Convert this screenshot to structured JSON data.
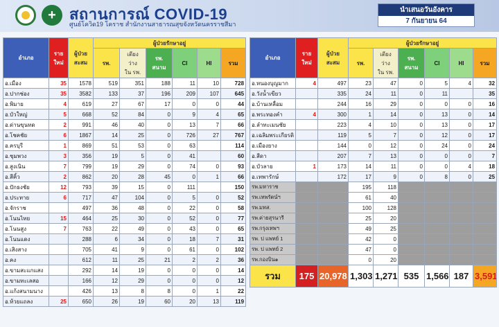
{
  "header": {
    "title": "สถานการณ์ COVID-19",
    "subtitle": "ศูนย์โควิด19 โคราช สำนักงานสาธารณสุขจังหวัดนครราชสีมา",
    "date_label": "นำเสนอวันอังคาร",
    "date_value": "7 กันยายน 64"
  },
  "columns": {
    "district": "อำเภอ",
    "new": "ราย\nใหม่",
    "cumulative": "ผู้ป่วย\nสะสม",
    "group": "ผู้ป่วยรักษาอยู่",
    "hospital": "รพ.",
    "beds": "เตียง\nว่าง\nใน รพ.",
    "field": "รพ.\nสนาม",
    "ci": "CI",
    "hi": "HI",
    "total": "รวม"
  },
  "left_rows": [
    {
      "name": "อ.เมือง",
      "new": "35",
      "cum": "1578",
      "hosp": "519",
      "beds": "351",
      "field": "188",
      "ci": "11",
      "hi": "10",
      "total": "728"
    },
    {
      "name": "อ.ปากช่อง",
      "new": "35",
      "cum": "3582",
      "hosp": "133",
      "beds": "37",
      "field": "196",
      "ci": "209",
      "hi": "107",
      "total": "645"
    },
    {
      "name": "อ.พิมาย",
      "new": "4",
      "cum": "619",
      "hosp": "27",
      "beds": "67",
      "field": "17",
      "ci": "0",
      "hi": "0",
      "total": "44"
    },
    {
      "name": "อ.บัวใหญ่",
      "new": "5",
      "cum": "668",
      "hosp": "52",
      "beds": "84",
      "field": "0",
      "ci": "9",
      "hi": "4",
      "total": "65"
    },
    {
      "name": "อ.ด่านขุนทด",
      "new": "2",
      "cum": "991",
      "hosp": "46",
      "beds": "40",
      "field": "0",
      "ci": "13",
      "hi": "7",
      "total": "66"
    },
    {
      "name": "อ.โชคชัย",
      "new": "6",
      "cum": "1867",
      "hosp": "14",
      "beds": "25",
      "field": "0",
      "ci": "726",
      "hi": "27",
      "total": "767"
    },
    {
      "name": "อ.ครบุรี",
      "new": "1",
      "cum": "869",
      "hosp": "51",
      "beds": "53",
      "field": "0",
      "ci": "63",
      "hi": "",
      "total": "114"
    },
    {
      "name": "อ.ชุมพวง",
      "new": "3",
      "cum": "356",
      "hosp": "19",
      "beds": "5",
      "field": "0",
      "ci": "41",
      "hi": "",
      "total": "60"
    },
    {
      "name": "อ.สูงเนิน",
      "new": "7",
      "cum": "799",
      "hosp": "19",
      "beds": "29",
      "field": "0",
      "ci": "74",
      "hi": "0",
      "total": "93"
    },
    {
      "name": "อ.สีคิ้ว",
      "new": "2",
      "cum": "862",
      "hosp": "20",
      "beds": "28",
      "field": "45",
      "ci": "0",
      "hi": "1",
      "total": "66"
    },
    {
      "name": "อ.ปักธงชัย",
      "new": "12",
      "cum": "793",
      "hosp": "39",
      "beds": "15",
      "field": "0",
      "ci": "111",
      "hi": "",
      "total": "150"
    },
    {
      "name": "อ.ประทาย",
      "new": "6",
      "cum": "717",
      "hosp": "47",
      "beds": "104",
      "field": "0",
      "ci": "5",
      "hi": "0",
      "total": "52"
    },
    {
      "name": "อ.จักราช",
      "new": "",
      "cum": "497",
      "hosp": "36",
      "beds": "48",
      "field": "0",
      "ci": "22",
      "hi": "0",
      "total": "58"
    },
    {
      "name": "อ.โนนไทย",
      "new": "15",
      "cum": "464",
      "hosp": "25",
      "beds": "30",
      "field": "0",
      "ci": "52",
      "hi": "0",
      "total": "77"
    },
    {
      "name": "อ.โนนสูง",
      "new": "7",
      "cum": "763",
      "hosp": "22",
      "beds": "49",
      "field": "0",
      "ci": "43",
      "hi": "0",
      "total": "65"
    },
    {
      "name": "อ.โนนแดง",
      "new": "",
      "cum": "288",
      "hosp": "6",
      "beds": "34",
      "field": "0",
      "ci": "18",
      "hi": "7",
      "total": "31"
    },
    {
      "name": "อ.เสิงสาง",
      "new": "",
      "cum": "705",
      "hosp": "41",
      "beds": "9",
      "field": "0",
      "ci": "61",
      "hi": "0",
      "total": "102"
    },
    {
      "name": "อ.คง",
      "new": "",
      "cum": "612",
      "hosp": "11",
      "beds": "25",
      "field": "21",
      "ci": "2",
      "hi": "2",
      "total": "36"
    },
    {
      "name": "อ.ขามสะแกแสง",
      "new": "",
      "cum": "292",
      "hosp": "14",
      "beds": "19",
      "field": "0",
      "ci": "0",
      "hi": "0",
      "total": "14"
    },
    {
      "name": "อ.ขามทะเลสอ",
      "new": "",
      "cum": "166",
      "hosp": "12",
      "beds": "29",
      "field": "0",
      "ci": "0",
      "hi": "0",
      "total": "12"
    },
    {
      "name": "อ.แก้งสนามนาง",
      "new": "",
      "cum": "426",
      "hosp": "13",
      "beds": "8",
      "field": "8",
      "ci": "0",
      "hi": "1",
      "total": "22"
    },
    {
      "name": "อ.ห้วยแถลง",
      "new": "25",
      "cum": "650",
      "hosp": "26",
      "beds": "19",
      "field": "60",
      "ci": "20",
      "hi": "13",
      "total": "119"
    }
  ],
  "right_rows": [
    {
      "name": "อ.หนองบุญมาก",
      "new": "4",
      "cum": "497",
      "hosp": "23",
      "beds": "47",
      "field": "0",
      "ci": "5",
      "hi": "4",
      "total": "32"
    },
    {
      "name": "อ.วังน้ำเขียว",
      "new": "",
      "cum": "335",
      "hosp": "24",
      "beds": "11",
      "field": "0",
      "ci": "11",
      "hi": "",
      "total": "35"
    },
    {
      "name": "อ.บ้านเหลื่อม",
      "new": "",
      "cum": "244",
      "hosp": "16",
      "beds": "29",
      "field": "0",
      "ci": "0",
      "hi": "0",
      "total": "16"
    },
    {
      "name": "อ.พระทองคำ",
      "new": "4",
      "cum": "300",
      "hosp": "1",
      "beds": "14",
      "field": "0",
      "ci": "13",
      "hi": "0",
      "total": "14"
    },
    {
      "name": "อ.ลำทะเมนชัย",
      "new": "",
      "cum": "223",
      "hosp": "4",
      "beds": "10",
      "field": "0",
      "ci": "13",
      "hi": "0",
      "total": "17"
    },
    {
      "name": "อ.เฉลิมพระเกียรติ",
      "new": "",
      "cum": "119",
      "hosp": "5",
      "beds": "7",
      "field": "0",
      "ci": "12",
      "hi": "0",
      "total": "17"
    },
    {
      "name": "อ.เมืองยาง",
      "new": "",
      "cum": "144",
      "hosp": "0",
      "beds": "12",
      "field": "0",
      "ci": "24",
      "hi": "0",
      "total": "24"
    },
    {
      "name": "อ.สีดา",
      "new": "",
      "cum": "207",
      "hosp": "7",
      "beds": "13",
      "field": "0",
      "ci": "0",
      "hi": "0",
      "total": "7"
    },
    {
      "name": "อ.บัวลาย",
      "new": "1",
      "cum": "173",
      "hosp": "14",
      "beds": "11",
      "field": "0",
      "ci": "0",
      "hi": "4",
      "total": "18"
    },
    {
      "name": "อ.เทพารักษ์",
      "new": "",
      "cum": "172",
      "hosp": "17",
      "beds": "9",
      "field": "0",
      "ci": "8",
      "hi": "0",
      "total": "25"
    }
  ],
  "hospital_rows": [
    {
      "name": "รพ.มหาราช",
      "hosp": "195",
      "beds": "118"
    },
    {
      "name": "รพ.เทพรัตน์ฯ",
      "hosp": "61",
      "beds": "40"
    },
    {
      "name": "รพ.มทส.",
      "hosp": "100",
      "beds": "128"
    },
    {
      "name": "รพ.ค่ายสุรนารี",
      "hosp": "25",
      "beds": "20"
    },
    {
      "name": "รพ.กรุงเทพฯ",
      "hosp": "49",
      "beds": "25"
    },
    {
      "name": "รพ. ป แพทย์ 1",
      "hosp": "42",
      "beds": "0"
    },
    {
      "name": "รพ. ป แพทย์ 2",
      "hosp": "47",
      "beds": "0"
    },
    {
      "name": "รพ.กองบิน๑",
      "hosp": "0",
      "beds": "20"
    }
  ],
  "summary": {
    "label": "รวม",
    "new": "175",
    "cum": "20,978",
    "hosp": "1,303",
    "beds": "1,271",
    "field": "535",
    "ci": "1,566",
    "hi": "187",
    "total": "3,591"
  },
  "colors": {
    "header_blue": "#1b3f8c",
    "new_red": "#d81b1b",
    "yellow": "#fbe34a",
    "orange": "#f5a623",
    "green": "#4caf50"
  }
}
